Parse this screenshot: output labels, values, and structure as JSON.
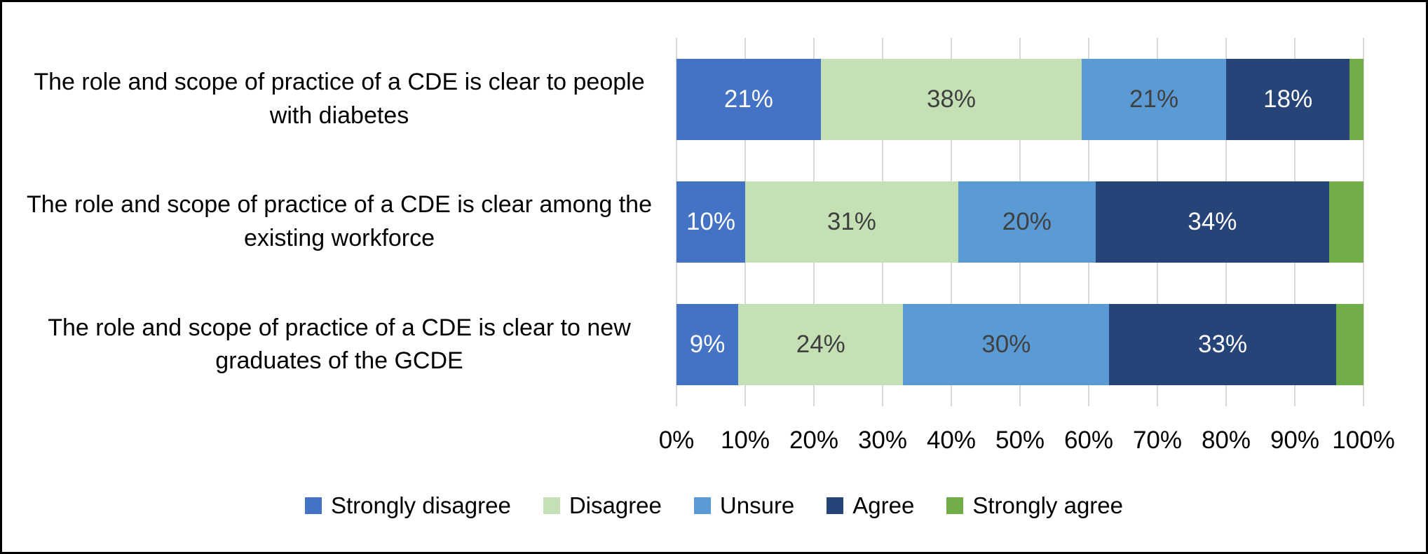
{
  "chart_data": {
    "type": "bar",
    "orientation": "horizontal",
    "stacked": true,
    "title": "",
    "xlabel": "",
    "ylabel": "",
    "xlim": [
      0,
      100
    ],
    "grid": true,
    "grid_color": "#d9d9d9",
    "background_color": "#ffffff",
    "frame_border_color": "#000000",
    "legend_position": "bottom",
    "categories": [
      "The role and scope of practice of a CDE is clear to people with diabetes",
      "The role and scope of practice of a CDE is clear among the existing workforce",
      "The role and scope of practice of a CDE is clear to new graduates of the GCDE"
    ],
    "x_ticks": [
      "0%",
      "10%",
      "20%",
      "30%",
      "40%",
      "50%",
      "60%",
      "70%",
      "80%",
      "90%",
      "100%"
    ],
    "series": [
      {
        "name": "Strongly disagree",
        "color": "#4472c4",
        "label_color": "#ffffff",
        "values": [
          21,
          10,
          9
        ],
        "labels": [
          "21%",
          "10%",
          "9%"
        ]
      },
      {
        "name": "Disagree",
        "color": "#c5e0b4",
        "label_color": "#404040",
        "values": [
          38,
          31,
          24
        ],
        "labels": [
          "38%",
          "31%",
          "24%"
        ]
      },
      {
        "name": "Unsure",
        "color": "#5b9bd5",
        "label_color": "#404040",
        "values": [
          21,
          20,
          30
        ],
        "labels": [
          "21%",
          "20%",
          "30%"
        ]
      },
      {
        "name": "Agree",
        "color": "#264478",
        "label_color": "#ffffff",
        "values": [
          18,
          34,
          33
        ],
        "labels": [
          "18%",
          "34%",
          "33%"
        ]
      },
      {
        "name": "Strongly agree",
        "color": "#70ad47",
        "label_color": "#ffffff",
        "values": [
          2,
          5,
          4
        ],
        "labels": [
          "",
          "",
          ""
        ]
      }
    ]
  }
}
